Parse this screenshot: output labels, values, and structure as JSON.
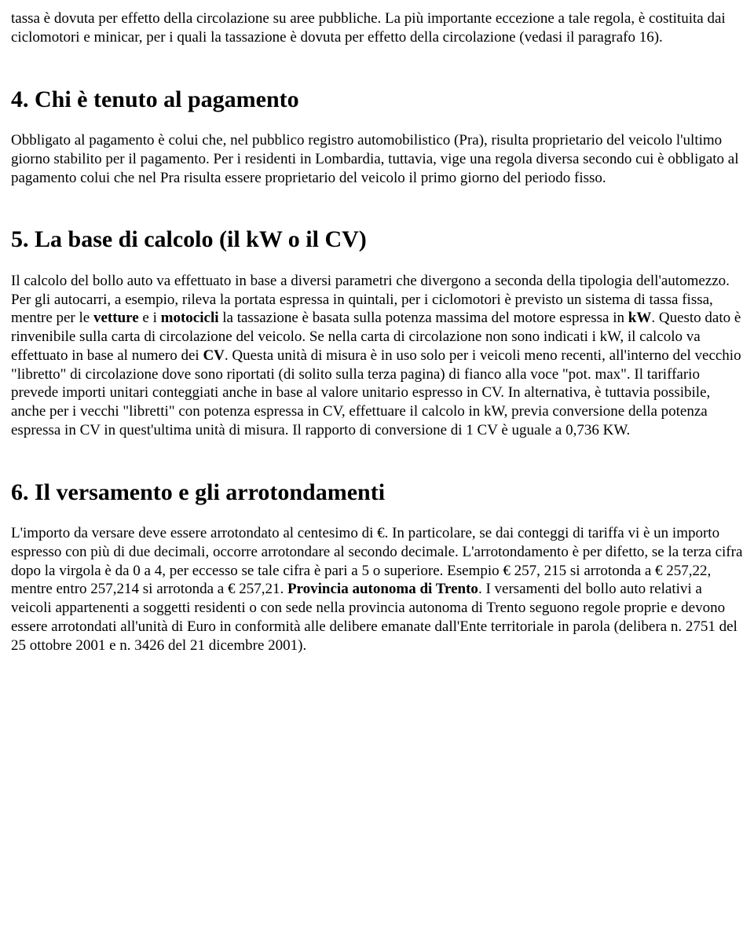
{
  "intro": {
    "text_before": "tassa è dovuta per effetto della circolazione su aree pubbliche. La più importante eccezione a tale regola, è costituita dai ciclomotori e minicar, per i quali la tassazione è dovuta per effetto della circolazione (vedasi il paragrafo 16)."
  },
  "section4": {
    "heading": "4. Chi è tenuto al pagamento",
    "para": "Obbligato al pagamento è colui che, nel pubblico registro automobilistico (Pra), risulta proprietario del veicolo l'ultimo giorno stabilito per il pagamento. Per i residenti in Lombardia, tuttavia, vige una regola diversa secondo cui è obbligato al pagamento colui che nel Pra risulta essere proprietario del veicolo il primo giorno del periodo fisso."
  },
  "section5": {
    "heading": "5. La base di calcolo (il kW o il CV)",
    "p1a": "Il calcolo del bollo auto va effettuato in base a diversi parametri che divergono a seconda della tipologia dell'automezzo. Per gli autocarri, a esempio, rileva la portata espressa in quintali, per i ciclomotori è previsto un sistema di tassa fissa, mentre per le ",
    "b1": "vetture",
    "p1b": " e i ",
    "b2": "motocicli",
    "p1c": " la tassazione è basata sulla potenza massima del motore espressa in ",
    "b3": "kW",
    "p1d": ". Questo dato è rinvenibile sulla carta di circolazione del veicolo. Se nella carta di circolazione non sono indicati i kW, il calcolo va effettuato in base al numero dei ",
    "b4": "CV",
    "p1e": ". Questa unità di misura è in uso solo per i veicoli meno recenti, all'interno del vecchio \"libretto\" di circolazione dove sono riportati (di solito sulla terza pagina) di fianco alla voce \"pot. max\". Il tariffario prevede importi unitari conteggiati anche in base al valore unitario espresso in CV. In alternativa, è tuttavia possibile, anche per i vecchi \"libretti\" con potenza espressa in CV, effettuare il calcolo in kW, previa conversione della potenza espressa in CV in quest'ultima unità di misura. Il rapporto di conversione di 1 CV è uguale a 0,736 KW."
  },
  "section6": {
    "heading": "6. Il versamento e gli arrotondamenti",
    "p1a": "L'importo da versare deve essere arrotondato al centesimo di €. In particolare, se dai conteggi di tariffa vi è un importo espresso con più di due decimali, occorre arrotondare al secondo decimale. L'arrotondamento è per difetto, se la terza cifra dopo la virgola è da 0 a 4, per eccesso se tale cifra è pari a 5 o superiore. Esempio € 257, 215 si arrotonda a € 257,22, mentre entro 257,214 si arrotonda a € 257,21. ",
    "b1": "Provincia autonoma di Trento",
    "p1b": ". I versamenti del bollo auto relativi a veicoli appartenenti a soggetti residenti o con sede nella provincia autonoma di Trento seguono regole proprie e devono essere arrotondati all'unità di Euro in conformità alle delibere emanate dall'Ente territoriale in parola (delibera n. 2751 del 25 ottobre 2001 e n. 3426 del 21 dicembre 2001)."
  }
}
